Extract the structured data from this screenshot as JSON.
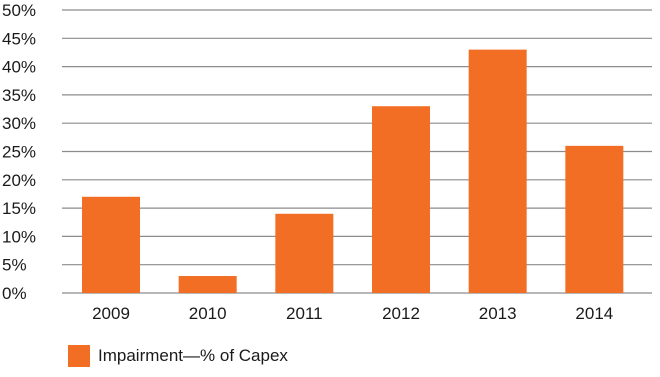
{
  "chart_data": {
    "type": "bar",
    "categories": [
      "2009",
      "2010",
      "2011",
      "2012",
      "2013",
      "2014"
    ],
    "series": [
      {
        "name": "Impairment—% of Capex",
        "values": [
          17,
          3,
          14,
          33,
          43,
          26
        ],
        "color": "#F36E25"
      }
    ],
    "y_ticks": [
      "0%",
      "5%",
      "10%",
      "15%",
      "20%",
      "25%",
      "30%",
      "35%",
      "40%",
      "45%",
      "50%"
    ],
    "ylim": [
      0,
      50
    ],
    "grid": true,
    "legend_position": "bottom-left",
    "grid_color": "#8c8c8c"
  }
}
